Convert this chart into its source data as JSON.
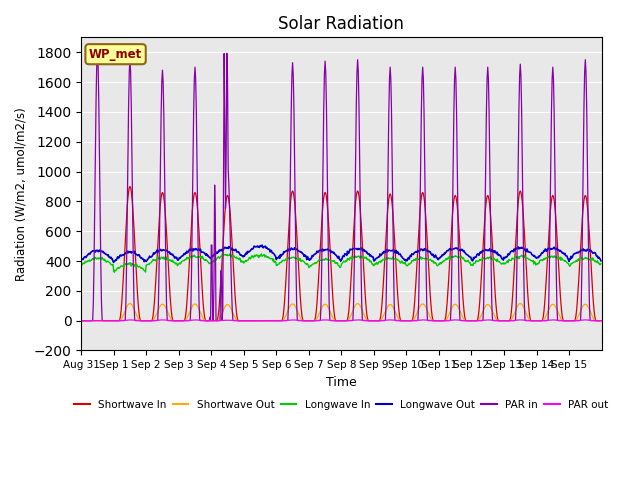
{
  "title": "Solar Radiation",
  "xlabel": "Time",
  "ylabel": "Radiation (W/m2, umol/m2/s)",
  "ylim": [
    -200,
    1900
  ],
  "yticks": [
    -200,
    0,
    200,
    400,
    600,
    800,
    1000,
    1200,
    1400,
    1600,
    1800
  ],
  "n_days": 16,
  "annotation_label": "WP_met",
  "series": {
    "shortwave_in": {
      "label": "Shortwave In",
      "color": "#dd0000"
    },
    "shortwave_out": {
      "label": "Shortwave Out",
      "color": "#ffaa00"
    },
    "longwave_in": {
      "label": "Longwave In",
      "color": "#00cc00"
    },
    "longwave_out": {
      "label": "Longwave Out",
      "color": "#0000cc"
    },
    "par_in": {
      "label": "PAR in",
      "color": "#8800aa"
    },
    "par_out": {
      "label": "PAR out",
      "color": "#ff00ff"
    }
  },
  "bg_color": "#e8e8e8",
  "grid_color": "#ffffff",
  "tick_labels": [
    "Aug 31",
    "Sep 1",
    "Sep 2",
    "Sep 3",
    "Sep 4",
    "Sep 5",
    "Sep 6",
    "Sep 7",
    "Sep 8",
    "Sep 9",
    "Sep 10",
    "Sep 11",
    "Sep 12",
    "Sep 13",
    "Sep 14",
    "Sep 15"
  ]
}
